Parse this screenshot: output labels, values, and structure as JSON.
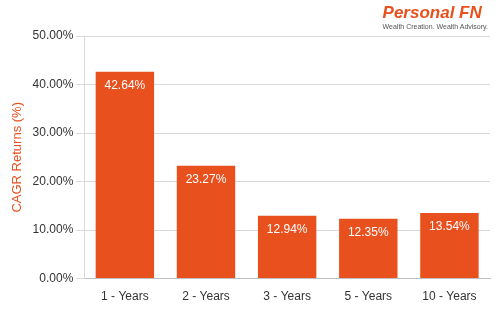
{
  "chart_data": {
    "type": "bar",
    "y_label": "CAGR Returns (%)",
    "categories": [
      "1 - Years",
      "2 - Years",
      "3 - Years",
      "5 - Years",
      "10 - Years"
    ],
    "values": [
      42.64,
      23.27,
      12.94,
      12.35,
      13.54
    ],
    "value_labels": [
      "42.64%",
      "23.27%",
      "12.94%",
      "12.35%",
      "13.54%"
    ],
    "data_labels": true,
    "color": "#e8501e",
    "ylim": [
      0,
      50
    ],
    "yticks": [
      {
        "value": 0,
        "label": "0.00%"
      },
      {
        "value": 10,
        "label": "10.00%"
      },
      {
        "value": 20,
        "label": "20.00%"
      },
      {
        "value": 30,
        "label": "30.00%"
      },
      {
        "value": 40,
        "label": "40.00%"
      },
      {
        "value": 50,
        "label": "50.00%"
      }
    ],
    "grid": true
  },
  "logo": {
    "name": "Personal FN",
    "tagline": "Wealth Creation. Wealth Advisory."
  }
}
